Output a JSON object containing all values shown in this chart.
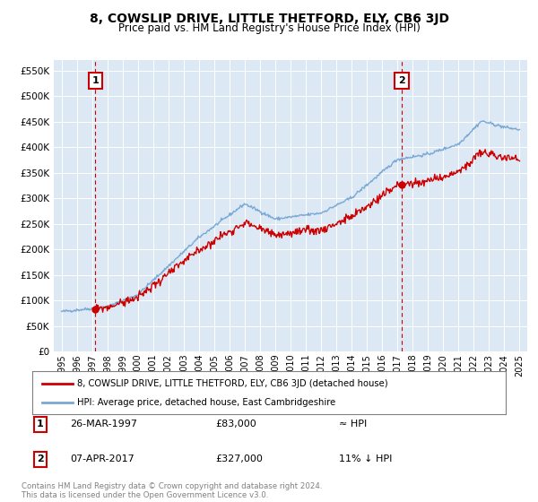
{
  "title": "8, COWSLIP DRIVE, LITTLE THETFORD, ELY, CB6 3JD",
  "subtitle": "Price paid vs. HM Land Registry's House Price Index (HPI)",
  "ylabel_ticks": [
    "£0",
    "£50K",
    "£100K",
    "£150K",
    "£200K",
    "£250K",
    "£300K",
    "£350K",
    "£400K",
    "£450K",
    "£500K",
    "£550K"
  ],
  "ytick_values": [
    0,
    50000,
    100000,
    150000,
    200000,
    250000,
    300000,
    350000,
    400000,
    450000,
    500000,
    550000
  ],
  "xlim": [
    1994.5,
    2025.5
  ],
  "ylim": [
    0,
    570000
  ],
  "sale1_year": 1997.23,
  "sale1_price": 83000,
  "sale2_year": 2017.27,
  "sale2_price": 327000,
  "hpi_line_color": "#7aa8d4",
  "price_line_color": "#cc0000",
  "vline_color": "#cc0000",
  "background_color": "#dce9f5",
  "legend_label1": "8, COWSLIP DRIVE, LITTLE THETFORD, ELY, CB6 3JD (detached house)",
  "legend_label2": "HPI: Average price, detached house, East Cambridgeshire",
  "note1_label": "1",
  "note1_date": "26-MAR-1997",
  "note1_price": "£83,000",
  "note1_rel": "≈ HPI",
  "note2_label": "2",
  "note2_date": "07-APR-2017",
  "note2_price": "£327,000",
  "note2_rel": "11% ↓ HPI",
  "footer": "Contains HM Land Registry data © Crown copyright and database right 2024.\nThis data is licensed under the Open Government Licence v3.0.",
  "xtick_years": [
    1995,
    1996,
    1997,
    1998,
    1999,
    2000,
    2001,
    2002,
    2003,
    2004,
    2005,
    2006,
    2007,
    2008,
    2009,
    2010,
    2011,
    2012,
    2013,
    2014,
    2015,
    2016,
    2017,
    2018,
    2019,
    2020,
    2021,
    2022,
    2023,
    2024,
    2025
  ]
}
